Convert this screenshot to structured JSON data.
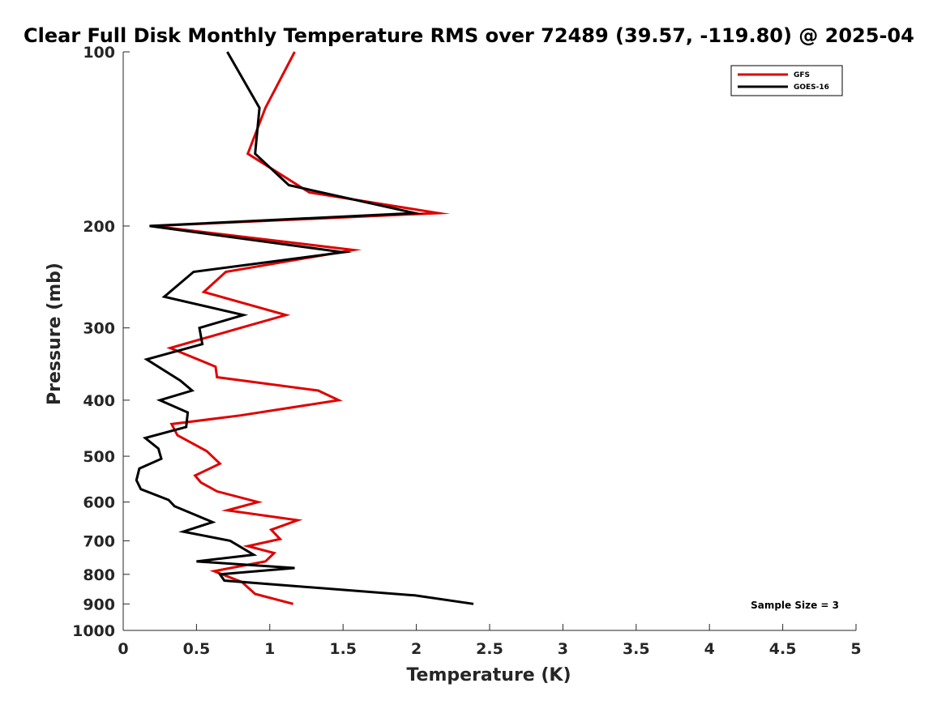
{
  "chart_data": {
    "type": "line",
    "title": "Clear Full Disk Monthly Temperature RMS over 72489 (39.57, -119.80) @ 2025-04",
    "xlabel": "Temperature (K)",
    "ylabel": "Pressure (mb)",
    "xlim": [
      0,
      5
    ],
    "ylim": [
      100,
      1000
    ],
    "y_scale": "log-reversed",
    "grid": false,
    "legend_position": "top-right",
    "x_ticks": [
      0,
      0.5,
      1,
      1.5,
      2,
      2.5,
      3,
      3.5,
      4,
      4.5,
      5
    ],
    "x_tick_labels": [
      "0",
      "0.5",
      "1",
      "1.5",
      "2",
      "2.5",
      "3",
      "3.5",
      "4",
      "4.5",
      "5"
    ],
    "y_ticks": [
      100,
      200,
      300,
      400,
      500,
      600,
      700,
      800,
      900,
      1000
    ],
    "y_tick_labels": [
      "100",
      "200",
      "300",
      "400",
      "500",
      "600",
      "700",
      "800",
      "900",
      "1000"
    ],
    "annotation": "Sample Size = 3",
    "series": [
      {
        "name": "GFS",
        "color": "#e00000",
        "points": [
          [
            1.17,
            100
          ],
          [
            0.97,
            125
          ],
          [
            0.85,
            150
          ],
          [
            1.27,
            175
          ],
          [
            2.15,
            190
          ],
          [
            0.2,
            200
          ],
          [
            1.57,
            220
          ],
          [
            0.7,
            240
          ],
          [
            0.55,
            260
          ],
          [
            1.11,
            285
          ],
          [
            0.8,
            300
          ],
          [
            0.32,
            325
          ],
          [
            0.63,
            350
          ],
          [
            0.64,
            365
          ],
          [
            1.33,
            385
          ],
          [
            1.47,
            400
          ],
          [
            0.8,
            425
          ],
          [
            0.33,
            440
          ],
          [
            0.37,
            460
          ],
          [
            0.57,
            490
          ],
          [
            0.66,
            515
          ],
          [
            0.49,
            540
          ],
          [
            0.53,
            555
          ],
          [
            0.64,
            575
          ],
          [
            0.92,
            600
          ],
          [
            0.71,
            620
          ],
          [
            1.19,
            645
          ],
          [
            1.01,
            670
          ],
          [
            1.07,
            695
          ],
          [
            0.85,
            715
          ],
          [
            1.03,
            735
          ],
          [
            0.97,
            760
          ],
          [
            0.62,
            790
          ],
          [
            0.81,
            825
          ],
          [
            0.9,
            865
          ],
          [
            1.16,
            900
          ]
        ]
      },
      {
        "name": "GOES-16",
        "color": "#000000",
        "points": [
          [
            0.71,
            100
          ],
          [
            0.93,
            125
          ],
          [
            0.9,
            150
          ],
          [
            1.13,
            170
          ],
          [
            1.99,
            190
          ],
          [
            0.18,
            200
          ],
          [
            1.5,
            222
          ],
          [
            0.48,
            240
          ],
          [
            0.28,
            265
          ],
          [
            0.82,
            285
          ],
          [
            0.52,
            300
          ],
          [
            0.54,
            320
          ],
          [
            0.16,
            340
          ],
          [
            0.39,
            370
          ],
          [
            0.47,
            385
          ],
          [
            0.25,
            400
          ],
          [
            0.44,
            420
          ],
          [
            0.43,
            445
          ],
          [
            0.15,
            465
          ],
          [
            0.24,
            485
          ],
          [
            0.26,
            505
          ],
          [
            0.11,
            525
          ],
          [
            0.09,
            550
          ],
          [
            0.12,
            570
          ],
          [
            0.31,
            595
          ],
          [
            0.35,
            610
          ],
          [
            0.61,
            650
          ],
          [
            0.41,
            675
          ],
          [
            0.73,
            700
          ],
          [
            0.89,
            740
          ],
          [
            0.5,
            760
          ],
          [
            1.17,
            780
          ],
          [
            0.66,
            800
          ],
          [
            0.69,
            820
          ],
          [
            1.99,
            870
          ],
          [
            2.39,
            900
          ]
        ]
      }
    ]
  }
}
